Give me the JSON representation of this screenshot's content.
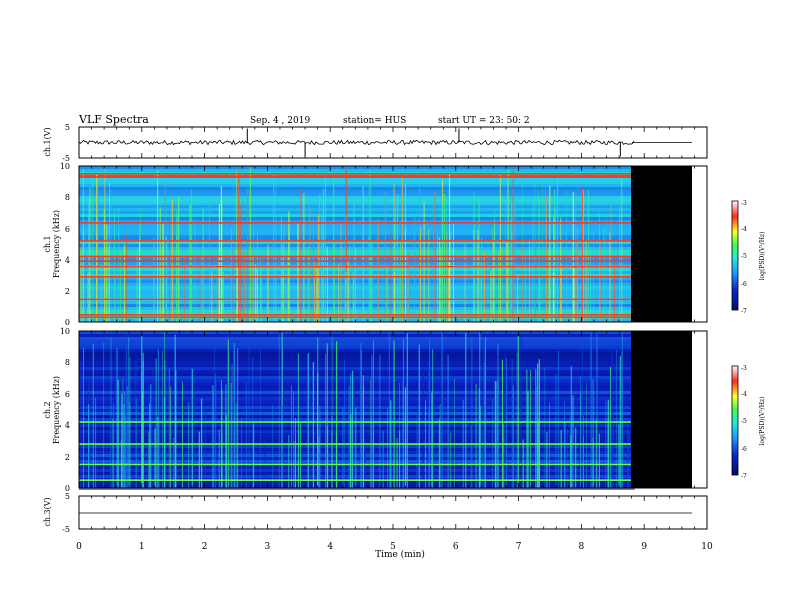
{
  "header": {
    "title": "VLF Spectra",
    "date": "Sep. 4  , 2019",
    "station": "station= HUS",
    "start": "start  UT =   23: 50: 2"
  },
  "colors": {
    "black": "#000000",
    "navy": "#000a6e",
    "blue": "#0a23c8",
    "sky": "#1ea0ff",
    "cyan": "#28e6dc",
    "green": "#3cff50",
    "yellow": "#ffff28",
    "red": "#ff2a1e",
    "white": "#ffffff"
  },
  "chart_data": [
    {
      "id": "ch1-waveform",
      "type": "line",
      "ylabel": "ch.1(V)",
      "ylim": [
        -5,
        5
      ],
      "yticks": [
        "5",
        "-5"
      ],
      "xlim": [
        0,
        10
      ],
      "data_end_min": 8.85,
      "baseline_v": 0,
      "spikes_min": [
        2.68,
        3.6,
        6.05,
        8.62
      ],
      "flat_after_end": true
    },
    {
      "id": "ch1-spectrogram",
      "type": "heatmap",
      "ylabel": [
        "ch.1",
        "Frequency  (kHz)"
      ],
      "ylim": [
        0,
        10
      ],
      "yticks": [
        "0",
        "2",
        "4",
        "6",
        "8",
        "10"
      ],
      "xlim": [
        0,
        10
      ],
      "data_end_min": 8.85,
      "colorbar": {
        "label": "log(PSD)(V²/Hz)",
        "min": -7,
        "max": -3,
        "ticks": [
          "-3",
          "-4",
          "-5",
          "-6",
          "-7"
        ]
      },
      "bright_bands_khz": [
        0.3,
        0.45,
        1.45,
        2.9,
        3.55,
        3.9,
        4.2,
        5.2,
        6.35,
        9.3,
        9.5
      ],
      "median_level": -5.4
    },
    {
      "id": "ch2-spectrogram",
      "type": "heatmap",
      "ylabel": [
        "ch.2",
        "Frequency  (kHz)"
      ],
      "ylim": [
        0,
        10
      ],
      "yticks": [
        "0",
        "2",
        "4",
        "6",
        "8",
        "10"
      ],
      "xlim": [
        0,
        10
      ],
      "data_end_min": 8.85,
      "colorbar": {
        "label": "log(PSD)(V²/Hz)",
        "min": -7,
        "max": -3,
        "ticks": [
          "-3",
          "-4",
          "-5",
          "-6",
          "-7"
        ]
      },
      "bright_bands_khz": [
        0.5,
        1.5,
        2.8,
        4.2
      ],
      "median_level": -6.3
    },
    {
      "id": "ch3-waveform",
      "type": "line",
      "ylabel": "ch.3(V)",
      "ylim": [
        -5,
        5
      ],
      "yticks": [
        "5",
        "-5"
      ],
      "xlim": [
        0,
        10
      ],
      "baseline_v": 0
    }
  ],
  "xaxis": {
    "label": "Time  (min)",
    "ticks": [
      "0",
      "1",
      "2",
      "3",
      "4",
      "5",
      "6",
      "7",
      "8",
      "9",
      "10"
    ]
  }
}
